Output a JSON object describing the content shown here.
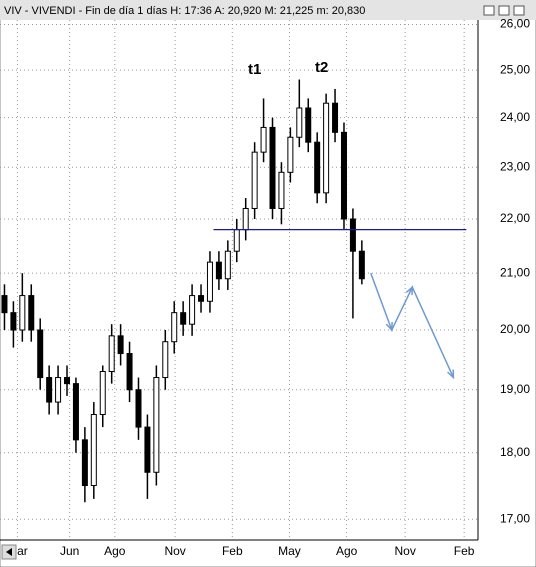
{
  "chart_data": {
    "type": "candlestick",
    "title": "VIV - VIVENDI - Fin de día 1 días H: 17:36 A: 20,920 M: 21,225 m: 20,830",
    "x": [
      0,
      2,
      4,
      6,
      8,
      10,
      12,
      14,
      16,
      18,
      20,
      22,
      24,
      26,
      28,
      30,
      32,
      34,
      36,
      38,
      40,
      42,
      44,
      46,
      48,
      50,
      52,
      54,
      56,
      58,
      60,
      62,
      64,
      66,
      68,
      70,
      72,
      74,
      76,
      78,
      80
    ],
    "open": [
      20.6,
      20.3,
      20.0,
      20.6,
      20.0,
      19.2,
      18.8,
      19.2,
      19.1,
      18.2,
      17.5,
      18.6,
      19.3,
      19.9,
      19.6,
      19.0,
      18.4,
      17.7,
      19.2,
      19.8,
      20.3,
      20.1,
      20.6,
      20.5,
      21.2,
      20.9,
      21.4,
      21.8,
      22.2,
      23.3,
      23.8,
      22.2,
      22.9,
      23.6,
      24.2,
      23.5,
      22.5,
      24.3,
      23.7,
      22.0,
      21.4
    ],
    "high": [
      20.8,
      20.5,
      21.0,
      20.8,
      20.2,
      19.4,
      19.4,
      19.4,
      19.2,
      18.4,
      18.8,
      19.4,
      20.1,
      20.1,
      19.8,
      19.2,
      18.6,
      19.4,
      20.0,
      20.5,
      20.5,
      20.8,
      20.8,
      21.4,
      21.4,
      21.6,
      22.0,
      22.4,
      23.5,
      24.4,
      24.0,
      23.1,
      23.8,
      24.8,
      24.4,
      23.7,
      24.5,
      24.6,
      23.9,
      22.2,
      21.6
    ],
    "low": [
      20.0,
      19.7,
      19.8,
      19.8,
      19.0,
      18.6,
      18.6,
      18.9,
      18.0,
      17.25,
      17.3,
      18.4,
      19.1,
      19.4,
      18.8,
      18.2,
      17.3,
      17.5,
      19.0,
      19.6,
      19.9,
      19.9,
      20.3,
      20.3,
      20.7,
      20.7,
      21.2,
      21.6,
      22.0,
      23.1,
      22.0,
      21.9,
      22.7,
      23.4,
      23.3,
      22.3,
      22.3,
      23.5,
      21.8,
      20.2,
      20.8
    ],
    "close": [
      20.3,
      20.0,
      20.6,
      20.0,
      19.2,
      18.8,
      19.2,
      19.1,
      18.2,
      17.5,
      18.6,
      19.3,
      19.9,
      19.6,
      19.0,
      18.4,
      17.7,
      19.2,
      19.8,
      20.3,
      20.1,
      20.6,
      20.5,
      21.2,
      20.9,
      21.4,
      21.8,
      22.2,
      23.3,
      23.8,
      22.2,
      22.9,
      23.6,
      24.2,
      23.5,
      22.5,
      24.3,
      23.7,
      22.0,
      21.4,
      20.9
    ],
    "log_scale": true,
    "grid": true,
    "xlim": [
      -1,
      106
    ],
    "xticks": [
      {
        "value": 2.9,
        "label": "Mar"
      },
      {
        "value": 14.6,
        "label": "Jun"
      },
      {
        "value": 24.7,
        "label": "Ago"
      },
      {
        "value": 38.2,
        "label": "Nov"
      },
      {
        "value": 51,
        "label": "Feb"
      },
      {
        "value": 63.8,
        "label": "May"
      },
      {
        "value": 76.6,
        "label": "Ago"
      },
      {
        "value": 89.7,
        "label": "Nov"
      },
      {
        "value": 102.9,
        "label": "Feb"
      }
    ],
    "ylim": [
      16.7,
      26.1
    ],
    "yticks": [
      {
        "value": 17,
        "label": "17,00"
      },
      {
        "value": 18,
        "label": "18,00"
      },
      {
        "value": 19,
        "label": "19,00"
      },
      {
        "value": 20,
        "label": "20,00"
      },
      {
        "value": 21,
        "label": "21,00"
      },
      {
        "value": 22,
        "label": "22,00"
      },
      {
        "value": 23,
        "label": "23,00"
      },
      {
        "value": 24,
        "label": "24,00"
      },
      {
        "value": 25,
        "label": "25,00"
      },
      {
        "value": 26,
        "label": "26,00"
      }
    ],
    "support_line": {
      "value": 21.8,
      "x": [
        46.8,
        103.4
      ],
      "color": "#1a1aa0"
    },
    "projection": {
      "x": [
        82,
        86.7,
        91.3,
        100.5
      ],
      "values": [
        21.0,
        20.0,
        20.75,
        19.2
      ],
      "color": "#6f9bd1"
    },
    "annotations": [
      {
        "text": "t1",
        "x": 56,
        "value": 25.0
      },
      {
        "text": "t2",
        "x": 71,
        "value": 25.05
      }
    ]
  }
}
